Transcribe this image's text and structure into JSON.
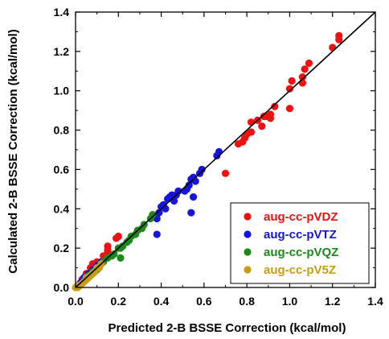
{
  "chart_data": {
    "type": "scatter",
    "xlabel": "Predicted 2-B BSSE Correction (kcal/mol)",
    "ylabel": "Calculated 2-B BSSE Correction (kcal/mol)",
    "xlim": [
      0,
      1.4
    ],
    "ylim": [
      0,
      1.4
    ],
    "x_ticks": [
      "0.0",
      "0.2",
      "0.4",
      "0.6",
      "0.8",
      "1.0",
      "1.2",
      "1.4"
    ],
    "y_ticks": [
      "0.0",
      "0.2",
      "0.4",
      "0.6",
      "0.8",
      "1.0",
      "1.2",
      "1.4"
    ],
    "grid": false,
    "legend_position": "bottom-right",
    "reference_line": {
      "x": [
        0,
        1.4
      ],
      "y": [
        0,
        1.4
      ],
      "color": "#000000"
    },
    "series": [
      {
        "name": "aug-cc-pVDZ",
        "color": "#ee1111",
        "points": [
          [
            1.23,
            1.28
          ],
          [
            1.23,
            1.26
          ],
          [
            1.2,
            1.22
          ],
          [
            1.09,
            1.14
          ],
          [
            1.07,
            1.11
          ],
          [
            1.06,
            1.07
          ],
          [
            1.01,
            1.05
          ],
          [
            1.06,
            1.04
          ],
          [
            1.0,
            1.01
          ],
          [
            0.93,
            0.92
          ],
          [
            1.0,
            0.91
          ],
          [
            0.91,
            0.88
          ],
          [
            0.89,
            0.87
          ],
          [
            0.91,
            0.86
          ],
          [
            0.88,
            0.87
          ],
          [
            0.85,
            0.85
          ],
          [
            0.82,
            0.84
          ],
          [
            0.87,
            0.82
          ],
          [
            0.82,
            0.79
          ],
          [
            0.8,
            0.78
          ],
          [
            0.79,
            0.76
          ],
          [
            0.78,
            0.74
          ],
          [
            0.76,
            0.73
          ],
          [
            0.7,
            0.58
          ],
          [
            0.2,
            0.26
          ],
          [
            0.19,
            0.25
          ],
          [
            0.15,
            0.21
          ],
          [
            0.15,
            0.19
          ],
          [
            0.15,
            0.18
          ],
          [
            0.13,
            0.16
          ],
          [
            0.1,
            0.13
          ],
          [
            0.08,
            0.12
          ],
          [
            0.07,
            0.1
          ],
          [
            0.05,
            0.07
          ],
          [
            0.03,
            0.04
          ]
        ]
      },
      {
        "name": "aug-cc-pVTZ",
        "color": "#1515dd",
        "points": [
          [
            0.67,
            0.69
          ],
          [
            0.66,
            0.67
          ],
          [
            0.59,
            0.6
          ],
          [
            0.58,
            0.58
          ],
          [
            0.55,
            0.56
          ],
          [
            0.54,
            0.55
          ],
          [
            0.56,
            0.54
          ],
          [
            0.53,
            0.52
          ],
          [
            0.52,
            0.5
          ],
          [
            0.51,
            0.49
          ],
          [
            0.48,
            0.49
          ],
          [
            0.47,
            0.47
          ],
          [
            0.45,
            0.47
          ],
          [
            0.44,
            0.46
          ],
          [
            0.43,
            0.45
          ],
          [
            0.46,
            0.44
          ],
          [
            0.55,
            0.46
          ],
          [
            0.41,
            0.42
          ],
          [
            0.4,
            0.41
          ],
          [
            0.42,
            0.4
          ],
          [
            0.54,
            0.38
          ],
          [
            0.39,
            0.38
          ],
          [
            0.38,
            0.35
          ],
          [
            0.38,
            0.27
          ],
          [
            0.12,
            0.13
          ],
          [
            0.1,
            0.11
          ],
          [
            0.08,
            0.09
          ],
          [
            0.06,
            0.07
          ],
          [
            0.04,
            0.05
          ],
          [
            0.03,
            0.03
          ],
          [
            0.02,
            0.02
          ]
        ]
      },
      {
        "name": "aug-cc-pVQZ",
        "color": "#1a8a1a",
        "points": [
          [
            0.36,
            0.37
          ],
          [
            0.35,
            0.35
          ],
          [
            0.32,
            0.32
          ],
          [
            0.31,
            0.3
          ],
          [
            0.29,
            0.29
          ],
          [
            0.28,
            0.27
          ],
          [
            0.26,
            0.26
          ],
          [
            0.25,
            0.24
          ],
          [
            0.24,
            0.23
          ],
          [
            0.22,
            0.21
          ],
          [
            0.21,
            0.2
          ],
          [
            0.2,
            0.2
          ],
          [
            0.18,
            0.17
          ],
          [
            0.17,
            0.16
          ],
          [
            0.15,
            0.15
          ],
          [
            0.13,
            0.13
          ],
          [
            0.21,
            0.15
          ],
          [
            0.12,
            0.12
          ],
          [
            0.11,
            0.1
          ],
          [
            0.1,
            0.09
          ],
          [
            0.08,
            0.08
          ],
          [
            0.06,
            0.06
          ],
          [
            0.05,
            0.05
          ],
          [
            0.04,
            0.03
          ],
          [
            0.03,
            0.02
          ],
          [
            0.02,
            0.01
          ]
        ]
      },
      {
        "name": "aug-cc-pV5Z",
        "color": "#c89c14",
        "points": [
          [
            0.12,
            0.12
          ],
          [
            0.11,
            0.1
          ],
          [
            0.1,
            0.1
          ],
          [
            0.09,
            0.08
          ],
          [
            0.08,
            0.07
          ],
          [
            0.07,
            0.06
          ],
          [
            0.06,
            0.05
          ],
          [
            0.05,
            0.05
          ],
          [
            0.05,
            0.04
          ],
          [
            0.04,
            0.03
          ],
          [
            0.03,
            0.02
          ],
          [
            0.02,
            0.01
          ],
          [
            0.01,
            0.0
          ],
          [
            0.0,
            0.0
          ],
          [
            0.01,
            0.01
          ]
        ]
      }
    ]
  }
}
